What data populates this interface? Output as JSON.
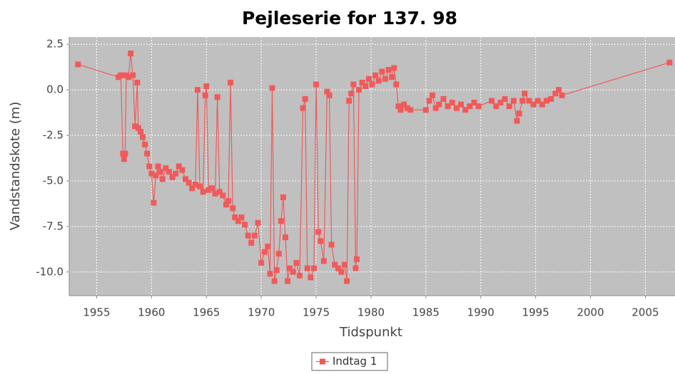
{
  "chart_data": {
    "type": "line",
    "title": "Pejleserie for 137.   98",
    "x_label": "Tidspunkt",
    "y_label": "Vandstandskote (m)",
    "xlim": [
      1952.5,
      2007.7
    ],
    "ylim": [
      -11.3,
      2.9
    ],
    "xticks": [
      1955,
      1960,
      1965,
      1970,
      1975,
      1980,
      1985,
      1990,
      1995,
      2000,
      2005
    ],
    "yticks": [
      2.5,
      {
        "value": 0,
        "label": "0.0"
      },
      -2.5,
      {
        "value": -5,
        "label": "-5.0"
      },
      -7.5,
      {
        "value": -10,
        "label": "-10.0"
      }
    ],
    "grid": true,
    "legend": "bottom",
    "x": [
      1953.3,
      1957.0,
      1957.2,
      1957.4,
      1957.5,
      1957.6,
      1957.7,
      1957.9,
      1958.1,
      1958.3,
      1958.5,
      1958.7,
      1958.8,
      1959.0,
      1959.2,
      1959.4,
      1959.6,
      1959.8,
      1960.0,
      1960.2,
      1960.4,
      1960.6,
      1960.8,
      1961.0,
      1961.3,
      1961.6,
      1961.9,
      1962.2,
      1962.5,
      1962.8,
      1963.1,
      1963.4,
      1963.7,
      1964.0,
      1964.2,
      1964.4,
      1964.7,
      1964.9,
      1965.0,
      1965.2,
      1965.5,
      1965.8,
      1966.0,
      1966.2,
      1966.5,
      1966.8,
      1967.0,
      1967.2,
      1967.4,
      1967.6,
      1967.9,
      1968.2,
      1968.5,
      1968.8,
      1969.1,
      1969.4,
      1969.7,
      1970.0,
      1970.3,
      1970.6,
      1970.8,
      1971.0,
      1971.2,
      1971.4,
      1971.6,
      1971.8,
      1972.0,
      1972.2,
      1972.4,
      1972.6,
      1972.9,
      1973.2,
      1973.5,
      1973.8,
      1974.0,
      1974.2,
      1974.5,
      1974.8,
      1975.0,
      1975.2,
      1975.4,
      1975.7,
      1976.0,
      1976.2,
      1976.4,
      1976.7,
      1977.0,
      1977.3,
      1977.6,
      1977.8,
      1978.0,
      1978.2,
      1978.4,
      1978.6,
      1978.7,
      1978.9,
      1979.2,
      1979.5,
      1979.8,
      1980.1,
      1980.4,
      1980.7,
      1981.0,
      1981.3,
      1981.6,
      1981.9,
      1982.1,
      1982.3,
      1982.5,
      1982.7,
      1983.0,
      1983.3,
      1983.6,
      1985.0,
      1985.3,
      1985.6,
      1985.9,
      1986.2,
      1986.6,
      1987.0,
      1987.4,
      1987.8,
      1988.2,
      1988.6,
      1989.0,
      1989.4,
      1989.8,
      1991.0,
      1991.4,
      1991.8,
      1992.2,
      1992.6,
      1993.0,
      1993.3,
      1993.5,
      1993.8,
      1994.0,
      1994.4,
      1994.8,
      1995.2,
      1995.6,
      1996.0,
      1996.4,
      1996.8,
      1997.1,
      1997.4,
      2007.2
    ],
    "series": [
      {
        "name": "Indtag 1",
        "color": "#f05a5a",
        "values": [
          1.4,
          0.7,
          0.8,
          -3.5,
          -3.8,
          -3.5,
          0.8,
          0.7,
          2.0,
          0.8,
          -2.0,
          0.4,
          -2.1,
          -2.3,
          -2.6,
          -3.0,
          -3.5,
          -4.2,
          -4.6,
          -6.2,
          -4.7,
          -4.2,
          -4.5,
          -4.9,
          -4.3,
          -4.5,
          -4.8,
          -4.6,
          -4.2,
          -4.4,
          -4.9,
          -5.1,
          -5.4,
          -5.2,
          0.0,
          -5.3,
          -5.6,
          -0.3,
          0.2,
          -5.5,
          -5.4,
          -5.7,
          -0.4,
          -5.6,
          -5.8,
          -6.3,
          -6.1,
          0.4,
          -6.5,
          -7.0,
          -7.2,
          -7.0,
          -7.4,
          -8.0,
          -8.4,
          -8.0,
          -7.3,
          -9.5,
          -8.9,
          -8.6,
          -10.1,
          0.1,
          -10.5,
          -9.9,
          -9.0,
          -7.2,
          -5.9,
          -8.1,
          -10.5,
          -9.8,
          -10.0,
          -9.5,
          -10.2,
          -1.0,
          -0.5,
          -9.8,
          -10.3,
          -9.8,
          0.3,
          -7.8,
          -8.3,
          -9.4,
          -0.1,
          -0.3,
          -8.5,
          -9.6,
          -9.8,
          -10.0,
          -9.6,
          -10.5,
          -0.6,
          -0.2,
          0.3,
          -9.8,
          -9.3,
          0.0,
          0.4,
          0.2,
          0.6,
          0.3,
          0.8,
          0.5,
          1.0,
          0.6,
          1.1,
          0.7,
          1.2,
          0.3,
          -0.9,
          -1.1,
          -0.8,
          -1.0,
          -1.1,
          -1.1,
          -0.6,
          -0.3,
          -1.0,
          -0.8,
          -0.5,
          -0.9,
          -0.7,
          -1.0,
          -0.8,
          -1.1,
          -0.9,
          -0.7,
          -0.9,
          -0.6,
          -0.9,
          -0.7,
          -0.5,
          -0.9,
          -0.6,
          -1.7,
          -1.3,
          -0.6,
          -0.2,
          -0.6,
          -0.8,
          -0.6,
          -0.8,
          -0.6,
          -0.5,
          -0.2,
          0.0,
          -0.3,
          1.5
        ]
      }
    ]
  }
}
